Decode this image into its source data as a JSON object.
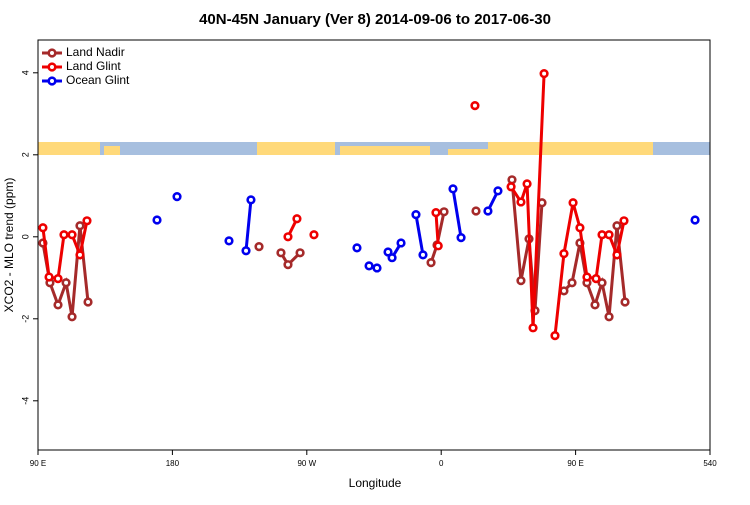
{
  "chart_data": {
    "type": "line",
    "title": "40N-45N January (Ver 8)   2014-09-06 to 2017-06-30",
    "xlabel": "Longitude",
    "ylabel": "XCO2 - MLO trend (ppm)",
    "xlim": [
      90,
      540
    ],
    "ylim": [
      -5.2,
      4.8
    ],
    "xticks": [
      {
        "value": 90,
        "label": "90 E"
      },
      180,
      {
        "value": 270,
        "label": "90 W"
      },
      {
        "value": 360,
        "label": "0"
      },
      {
        "value": 450,
        "label": "90 E"
      },
      540
    ],
    "yticks": [
      -4,
      -2,
      0,
      2,
      4
    ],
    "legend": "upper left",
    "series": [
      {
        "name": "Land Nadir",
        "color": "#a52a2a",
        "x": [
          93.3,
          98.0,
          103.4,
          108.8,
          112.8,
          118.1,
          123.5,
          null,
          238.0,
          null,
          252.7,
          257.4,
          265.5,
          null,
          353.2,
          357.2,
          361.9,
          null,
          383.3,
          null,
          407.4,
          413.4,
          418.8,
          422.8,
          427.5,
          null,
          442.2,
          447.6,
          452.9,
          457.6,
          463.0,
          467.7,
          472.4,
          477.7,
          483.1
        ],
        "values": [
          -0.15,
          -1.12,
          -1.66,
          -1.12,
          -1.95,
          0.27,
          -1.59,
          null,
          -0.24,
          null,
          -0.39,
          -0.68,
          -0.39,
          null,
          -0.63,
          -0.2,
          0.61,
          null,
          0.63,
          null,
          1.39,
          -1.07,
          -0.05,
          -1.8,
          0.83,
          null,
          -1.32,
          -1.12,
          -0.15,
          -1.12,
          -1.66,
          -1.12,
          -1.95,
          0.27,
          -1.59
        ]
      },
      {
        "name": "Land Glint",
        "color": "#ee0000",
        "x": [
          93.3,
          97.4,
          103.4,
          107.4,
          112.8,
          118.1,
          122.8,
          null,
          257.4,
          263.4,
          null,
          274.8,
          null,
          356.5,
          358.0,
          null,
          382.6,
          null,
          406.8,
          413.4,
          417.5,
          421.5,
          428.9,
          null,
          436.2,
          442.2,
          448.3,
          452.9,
          457.6,
          463.7,
          467.7,
          472.4,
          477.7,
          482.4
        ],
        "values": [
          0.22,
          -0.98,
          -1.02,
          0.05,
          0.05,
          -0.44,
          0.39,
          null,
          0.0,
          0.44,
          null,
          0.05,
          null,
          0.59,
          -0.22,
          null,
          3.2,
          null,
          1.22,
          0.85,
          1.29,
          -2.22,
          3.98,
          null,
          -2.41,
          -0.41,
          0.83,
          0.22,
          -0.98,
          -1.02,
          0.05,
          0.05,
          -0.44,
          0.39
        ]
      },
      {
        "name": "Ocean Glint",
        "color": "#0000ee",
        "x": [
          169.7,
          null,
          183.1,
          null,
          217.9,
          null,
          229.3,
          232.6,
          null,
          303.6,
          null,
          311.7,
          317.0,
          null,
          324.4,
          327.1,
          333.1,
          null,
          343.1,
          347.8,
          null,
          367.9,
          373.3,
          null,
          391.3,
          398.0,
          null,
          530.0
        ],
        "values": [
          0.41,
          null,
          0.98,
          null,
          -0.1,
          null,
          -0.34,
          0.9,
          null,
          -0.27,
          null,
          -0.71,
          -0.76,
          null,
          -0.37,
          -0.51,
          -0.15,
          null,
          0.54,
          -0.44,
          null,
          1.17,
          -0.02,
          null,
          0.63,
          1.12,
          null,
          0.41
        ]
      }
    ]
  }
}
